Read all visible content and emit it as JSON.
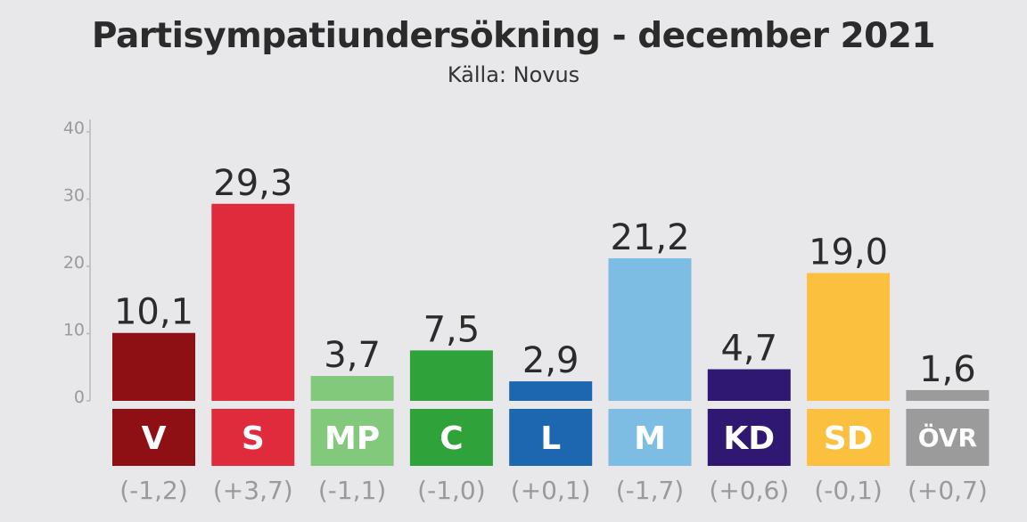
{
  "chart_data": {
    "type": "bar",
    "title": "Partisympatiundersökning - december 2021",
    "subtitle": "Källa: Novus",
    "ylim": [
      0,
      40
    ],
    "yticks": [
      0,
      10,
      20,
      30,
      40
    ],
    "grid": false,
    "categories": [
      "V",
      "S",
      "MP",
      "C",
      "L",
      "M",
      "KD",
      "SD",
      "ÖVR"
    ],
    "values": [
      10.1,
      29.3,
      3.7,
      7.5,
      2.9,
      21.2,
      4.7,
      19.0,
      1.6
    ],
    "value_labels": [
      "10,1",
      "29,3",
      "3,7",
      "7,5",
      "2,9",
      "21,2",
      "4,7",
      "19,0",
      "1,6"
    ],
    "change_labels": [
      "(-1,2)",
      "(+3,7)",
      "(-1,1)",
      "(-1,0)",
      "(+0,1)",
      "(-1,7)",
      "(+0,6)",
      "(-0,1)",
      "(+0,7)"
    ],
    "colors": [
      "#8e1015",
      "#e02b3c",
      "#83c97c",
      "#2fa33a",
      "#1c67b0",
      "#7ebde3",
      "#2e1871",
      "#fcc03f",
      "#9b9b9b"
    ]
  }
}
